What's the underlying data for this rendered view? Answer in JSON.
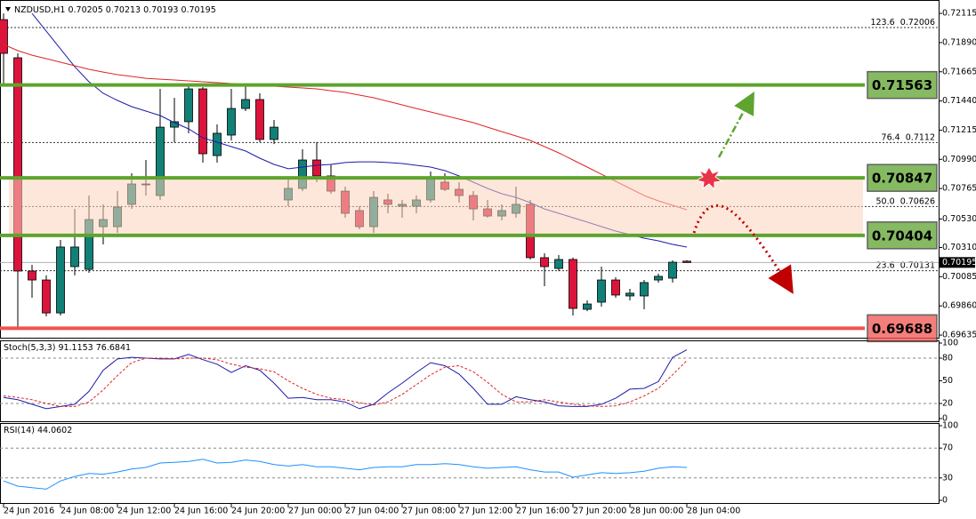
{
  "chart_data": [
    {
      "type": "candlestick",
      "title": "NZDUSD,H1",
      "categories": [
        "24 Jun 2016",
        null,
        null,
        null,
        "24 Jun 08:00",
        null,
        null,
        null,
        "24 Jun 12:00",
        null,
        null,
        null,
        "24 Jun 16:00",
        null,
        null,
        null,
        "24 Jun 20:00",
        null,
        null,
        null,
        "27 Jun 00:00",
        null,
        null,
        null,
        "27 Jun 04:00",
        null,
        null,
        null,
        "27 Jun 08:00",
        null,
        null,
        null,
        "27 Jun 12:00",
        null,
        null,
        null,
        "27 Jun 16:00",
        null,
        null,
        null,
        "27 Jun 20:00",
        null,
        null,
        null,
        "28 Jun 00:00",
        null,
        null,
        null,
        "28 Jun 04:00"
      ],
      "ohlc": [
        [
          0.72067,
          0.72115,
          0.71567,
          0.71807
        ],
        [
          0.71773,
          0.71807,
          0.69697,
          0.70129
        ],
        [
          0.70129,
          0.70177,
          0.69923,
          0.7006
        ],
        [
          0.7006,
          0.70095,
          0.69779,
          0.69806
        ],
        [
          0.69806,
          0.70369,
          0.69786,
          0.70314
        ],
        [
          0.70163,
          0.70608,
          0.70095,
          0.70314
        ],
        [
          0.70142,
          0.70711,
          0.70115,
          0.70526
        ],
        [
          0.70471,
          0.70643,
          0.70334,
          0.70526
        ],
        [
          0.70471,
          0.70745,
          0.70423,
          0.70622
        ],
        [
          0.70643,
          0.70882,
          0.70608,
          0.708
        ],
        [
          0.708,
          0.70985,
          0.70711,
          0.70793
        ],
        [
          0.70711,
          0.71533,
          0.70677,
          0.71238
        ],
        [
          0.71238,
          0.71464,
          0.71122,
          0.7128
        ],
        [
          0.7128,
          0.71567,
          0.71191,
          0.71533
        ],
        [
          0.71533,
          0.71547,
          0.70965,
          0.71033
        ],
        [
          0.71019,
          0.71259,
          0.70965,
          0.71191
        ],
        [
          0.71177,
          0.71533,
          0.71136,
          0.71382
        ],
        [
          0.71382,
          0.71554,
          0.71362,
          0.71451
        ],
        [
          0.71451,
          0.71499,
          0.71122,
          0.71143
        ],
        [
          0.71143,
          0.71293,
          0.71108,
          0.71238
        ],
        [
          0.70677,
          0.70848,
          0.70629,
          0.70766
        ],
        [
          0.70766,
          0.71067,
          0.70745,
          0.70985
        ],
        [
          0.70985,
          0.71122,
          0.70814,
          0.70862
        ],
        [
          0.70862,
          0.70951,
          0.70725,
          0.70745
        ],
        [
          0.70745,
          0.7078,
          0.7054,
          0.70574
        ],
        [
          0.70595,
          0.70629,
          0.70451,
          0.70471
        ],
        [
          0.70471,
          0.70745,
          0.70423,
          0.70697
        ],
        [
          0.70677,
          0.70725,
          0.70574,
          0.70643
        ],
        [
          0.70629,
          0.70677,
          0.7054,
          0.70643
        ],
        [
          0.70629,
          0.70711,
          0.70574,
          0.70677
        ],
        [
          0.70677,
          0.70896,
          0.70656,
          0.70848
        ],
        [
          0.70814,
          0.70882,
          0.70745,
          0.70759
        ],
        [
          0.70759,
          0.70814,
          0.70656,
          0.70711
        ],
        [
          0.70711,
          0.70745,
          0.70519,
          0.70608
        ],
        [
          0.70608,
          0.70677,
          0.7054,
          0.70553
        ],
        [
          0.70553,
          0.70643,
          0.70519,
          0.70595
        ],
        [
          0.70574,
          0.7078,
          0.7054,
          0.70643
        ],
        [
          0.70643,
          0.70677,
          0.70218,
          0.70232
        ],
        [
          0.70232,
          0.70266,
          0.70012,
          0.70163
        ],
        [
          0.70149,
          0.70252,
          0.70129,
          0.70218
        ],
        [
          0.70218,
          0.70232,
          0.69786,
          0.69841
        ],
        [
          0.69834,
          0.69903,
          0.6982,
          0.69875
        ],
        [
          0.69889,
          0.70163,
          0.69855,
          0.7006
        ],
        [
          0.7006,
          0.70081,
          0.69923,
          0.69944
        ],
        [
          0.69937,
          0.69992,
          0.69903,
          0.69958
        ],
        [
          0.69937,
          0.7006,
          0.69834,
          0.7004
        ],
        [
          0.7006,
          0.70108,
          0.7004,
          0.70088
        ],
        [
          0.70074,
          0.70211,
          0.7004,
          0.70197
        ],
        [
          0.70205,
          0.70213,
          0.70193,
          0.70195
        ]
      ],
      "colors": {
        "up": "#118077",
        "down": "#dc143c"
      },
      "lines": [
        {
          "color": "#1c1ca8",
          "values": [
            null,
            null,
            0.72115,
            0.71978,
            0.71841,
            0.71704,
            0.71588,
            0.71499,
            0.71444,
            0.71396,
            0.71362,
            0.71328,
            0.71273,
            0.71225,
            0.71156,
            0.71122,
            0.71088,
            0.71054,
            0.70999,
            0.70951,
            0.70917,
            0.7093,
            0.70944,
            0.70951,
            0.70965,
            0.70971,
            0.70971,
            0.70965,
            0.70958,
            0.70944,
            0.7093,
            0.70903,
            0.70862,
            0.70814,
            0.70766,
            0.70725,
            0.70697,
            0.70656,
            0.70608,
            0.70574,
            0.7054,
            0.70506,
            0.70471,
            0.70437,
            0.7041,
            0.70382,
            0.70362,
            0.70334,
            0.70314
          ]
        },
        {
          "color": "#e02424",
          "values": [
            0.71876,
            0.71828,
            0.71793,
            0.71766,
            0.71739,
            0.71711,
            0.71684,
            0.71663,
            0.71643,
            0.71629,
            0.71615,
            0.71608,
            0.71602,
            0.71595,
            0.71588,
            0.71581,
            0.71574,
            0.71567,
            0.7156,
            0.71554,
            0.71547,
            0.7154,
            0.71533,
            0.71519,
            0.71506,
            0.71485,
            0.71465,
            0.71437,
            0.7141,
            0.71382,
            0.71355,
            0.71328,
            0.713,
            0.71273,
            0.71238,
            0.71204,
            0.7117,
            0.71136,
            0.71088,
            0.7104,
            0.70985,
            0.7093,
            0.70875,
            0.70821,
            0.70766,
            0.70711,
            0.7067,
            0.70636,
            0.70601
          ]
        }
      ],
      "ylim": [
        0.69615,
        0.72184
      ],
      "yticks": [
        0.72115,
        {
          "value": 0.7189,
          "label": "0.71890"
        },
        0.71665,
        {
          "value": 0.7144,
          "label": "0.71440"
        },
        0.71215,
        {
          "value": 0.7099,
          "label": "0.70990"
        },
        0.70765,
        {
          "value": 0.7053,
          "label": "0.70530"
        },
        {
          "value": 0.7031,
          "label": "0.70310"
        },
        0.70085,
        {
          "value": 0.6986,
          "label": "0.69860"
        },
        0.69635
      ],
      "levels": [
        {
          "value": 0.71563,
          "color": "#5ea42e"
        },
        {
          "value": 0.70847,
          "color": "#5ea42e"
        },
        {
          "value": 0.70404,
          "color": "#5ea42e"
        },
        {
          "value": 0.69688,
          "color": "#ef5350"
        }
      ],
      "fibonacci": [
        {
          "label": "123.6",
          "value": 0.72006
        },
        {
          "label": "76.4",
          "value": 0.7112
        },
        {
          "label": "50.0",
          "value": 0.70626
        },
        {
          "label": "23.6",
          "value": 0.70131
        }
      ]
    },
    {
      "type": "line",
      "title": "Stoch(5,3,3)",
      "series": [
        {
          "color": "#1c1ca8",
          "values": [
            28,
            25,
            19,
            13,
            16,
            19,
            36,
            64,
            79,
            81,
            80,
            79,
            79,
            85,
            78,
            72,
            61,
            70,
            64,
            47,
            27,
            28,
            25,
            25,
            22,
            13,
            19,
            34,
            47,
            61,
            74,
            70,
            59,
            40,
            19,
            19,
            29,
            25,
            22,
            17,
            16,
            16,
            19,
            27,
            39,
            40,
            49,
            81,
            91.1153
          ]
        },
        {
          "color": "#e02424",
          "dashed": true,
          "values": [
            30,
            28,
            25,
            20,
            16,
            16,
            22,
            38,
            57,
            74,
            80,
            80,
            79,
            80,
            80,
            78,
            72,
            68,
            66,
            62,
            50,
            40,
            32,
            27,
            25,
            21,
            18,
            22,
            32,
            45,
            58,
            68,
            70,
            62,
            48,
            32,
            22,
            22,
            25,
            22,
            19,
            17,
            16,
            17,
            22,
            30,
            40,
            58,
            76.6841
          ]
        }
      ],
      "ylim": [
        0,
        100
      ],
      "yticks": [
        100,
        80,
        50,
        20,
        0
      ],
      "levels": [
        80,
        20
      ]
    },
    {
      "type": "line",
      "title": "RSI(14)",
      "series": [
        {
          "color": "#1e90ff",
          "values": [
            26,
            19,
            17,
            15,
            26,
            32,
            36,
            35,
            38,
            42,
            44,
            50,
            51,
            52,
            55,
            50,
            51,
            54,
            52,
            48,
            46,
            48,
            45,
            45,
            43,
            41,
            44,
            45,
            45,
            48,
            48,
            49,
            48,
            45,
            43,
            44,
            45,
            41,
            38,
            38,
            31,
            34,
            37,
            36,
            37,
            39,
            43,
            45,
            44.0602
          ]
        }
      ],
      "ylim": [
        0,
        100
      ],
      "yticks": [
        100,
        70,
        30,
        0
      ],
      "levels": [
        70,
        30
      ]
    }
  ]
}
